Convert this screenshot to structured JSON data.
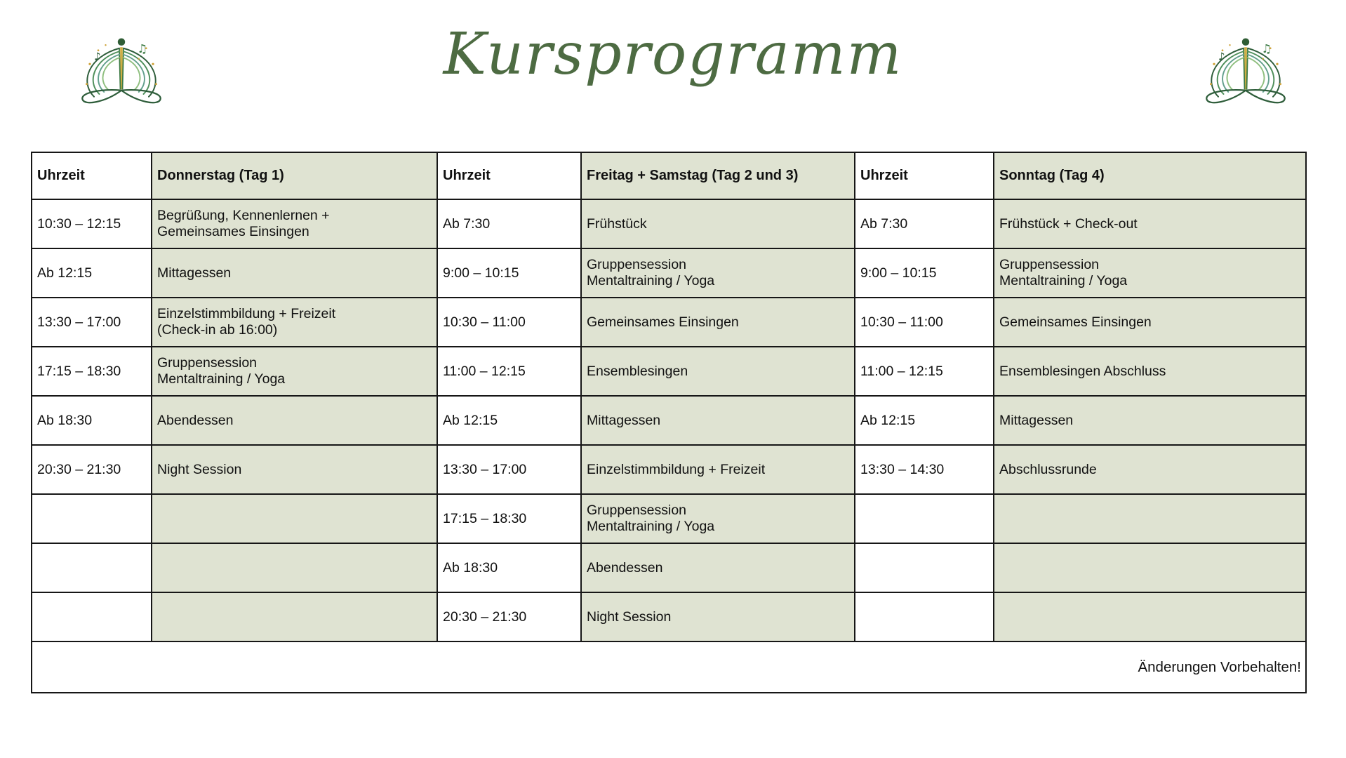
{
  "page": {
    "title": "Kursprogramm"
  },
  "colors": {
    "cell_green": "#dfe3d2",
    "title_green": "#4d6b42",
    "border": "#161616",
    "logo_dark_green": "#2e5d3a",
    "logo_mid_green": "#4e8f5a",
    "logo_teal": "#63a08d",
    "logo_light_green": "#8fbf7f",
    "logo_gold": "#d0a43c"
  },
  "logo": {
    "name": "music-meditation-ornament"
  },
  "table": {
    "columns": [
      {
        "label": "Uhrzeit",
        "kind": "time"
      },
      {
        "label": "Donnerstag (Tag 1)",
        "kind": "activity"
      },
      {
        "label": "Uhrzeit",
        "kind": "time"
      },
      {
        "label": "Freitag + Samstag (Tag 2 und 3)",
        "kind": "activity"
      },
      {
        "label": "Uhrzeit",
        "kind": "time"
      },
      {
        "label": "Sonntag (Tag 4)",
        "kind": "activity"
      }
    ],
    "rows": [
      [
        "10:30 – 12:15",
        "Begrüßung, Kennenlernen +\nGemeinsames Einsingen",
        "Ab 7:30",
        "Frühstück",
        "Ab 7:30",
        "Frühstück + Check-out"
      ],
      [
        "Ab 12:15",
        "Mittagessen",
        "9:00 – 10:15",
        "Gruppensession\nMentaltraining / Yoga",
        "9:00 – 10:15",
        "Gruppensession\nMentaltraining / Yoga"
      ],
      [
        "13:30 – 17:00",
        "Einzelstimmbildung + Freizeit\n(Check-in ab 16:00)",
        "10:30 – 11:00",
        "Gemeinsames Einsingen",
        "10:30 – 11:00",
        "Gemeinsames Einsingen"
      ],
      [
        "17:15 – 18:30",
        "Gruppensession\nMentaltraining / Yoga",
        "11:00 – 12:15",
        "Ensemblesingen",
        "11:00 – 12:15",
        "Ensemblesingen Abschluss"
      ],
      [
        "Ab 18:30",
        "Abendessen",
        "Ab 12:15",
        "Mittagessen",
        "Ab 12:15",
        "Mittagessen"
      ],
      [
        "20:30 – 21:30",
        "Night Session",
        "13:30 – 17:00",
        "Einzelstimmbildung + Freizeit",
        "13:30 – 14:30",
        "Abschlussrunde"
      ],
      [
        "",
        "",
        "17:15 – 18:30",
        "Gruppensession\nMentaltraining / Yoga",
        "",
        ""
      ],
      [
        "",
        "",
        "Ab 18:30",
        "Abendessen",
        "",
        ""
      ],
      [
        "",
        "",
        "20:30 – 21:30",
        "Night Session",
        "",
        ""
      ]
    ],
    "footer_note": "Änderungen Vorbehalten!"
  }
}
